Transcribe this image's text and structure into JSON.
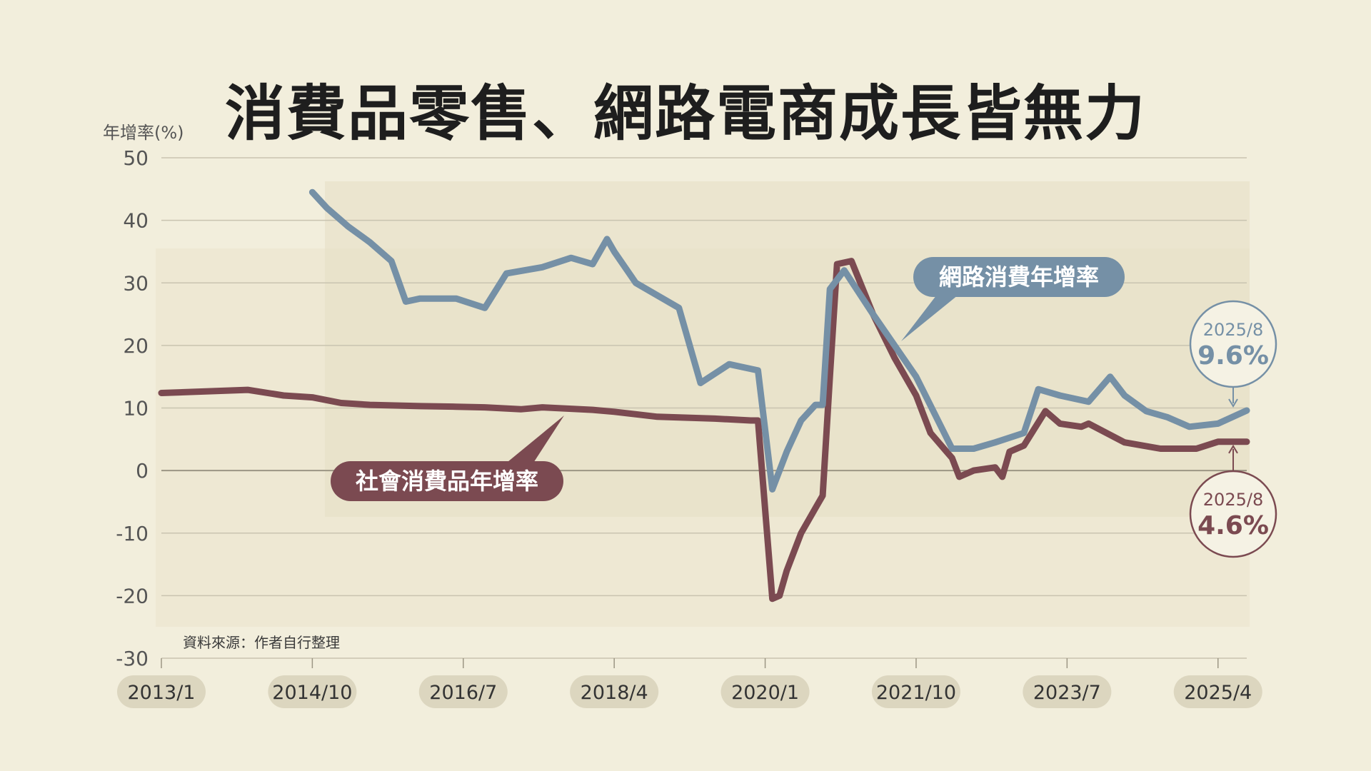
{
  "title": "消費品零售、網路電商成長皆無力",
  "source": "資料來源：作者自行整理",
  "colors": {
    "background": "#f2eedc",
    "retail": "#7b4a51",
    "online": "#7590a6",
    "grid": "#c9c4b0",
    "tick_pill": "#dcd6bf"
  },
  "chart_data": {
    "type": "line",
    "ylabel": "年增率(%)",
    "ylim": [
      -30,
      50
    ],
    "yticks": [
      -30,
      -20,
      -10,
      0,
      10,
      20,
      30,
      40,
      50
    ],
    "xlim": [
      "2013-01",
      "2025-08"
    ],
    "xticks": [
      "2013/1",
      "2014/10",
      "2016/7",
      "2018/4",
      "2020/1",
      "2021/10",
      "2023/7",
      "2025/4"
    ],
    "grid": true,
    "series": [
      {
        "name": "社會消費品年增率",
        "color": "#7b4a51",
        "points": [
          [
            "2013-01",
            12.4
          ],
          [
            "2014-01",
            12.9
          ],
          [
            "2014-06",
            12.0
          ],
          [
            "2014-10",
            11.7
          ],
          [
            "2015-02",
            10.8
          ],
          [
            "2015-06",
            10.5
          ],
          [
            "2016-01",
            10.3
          ],
          [
            "2016-06",
            10.2
          ],
          [
            "2016-10",
            10.1
          ],
          [
            "2017-03",
            9.8
          ],
          [
            "2017-06",
            10.1
          ],
          [
            "2018-01",
            9.7
          ],
          [
            "2018-04",
            9.4
          ],
          [
            "2018-10",
            8.6
          ],
          [
            "2019-06",
            8.3
          ],
          [
            "2019-11",
            8.0
          ],
          [
            "2019-12",
            8.0
          ],
          [
            "2020-02",
            -20.5
          ],
          [
            "2020-03",
            -20.0
          ],
          [
            "2020-04",
            -16.0
          ],
          [
            "2020-06",
            -10.0
          ],
          [
            "2020-08",
            -6.0
          ],
          [
            "2020-09",
            -4.0
          ],
          [
            "2020-10",
            15.0
          ],
          [
            "2020-11",
            33.0
          ],
          [
            "2021-01",
            33.5
          ],
          [
            "2021-04",
            25.0
          ],
          [
            "2021-07",
            18.0
          ],
          [
            "2021-10",
            12.0
          ],
          [
            "2021-11",
            9.0
          ],
          [
            "2021-12",
            6.0
          ],
          [
            "2022-03",
            2.0
          ],
          [
            "2022-04",
            -1.0
          ],
          [
            "2022-06",
            0.0
          ],
          [
            "2022-09",
            0.5
          ],
          [
            "2022-10",
            -1.0
          ],
          [
            "2022-11",
            3.0
          ],
          [
            "2023-01",
            4.0
          ],
          [
            "2023-04",
            9.5
          ],
          [
            "2023-06",
            7.5
          ],
          [
            "2023-09",
            7.0
          ],
          [
            "2023-10",
            7.5
          ],
          [
            "2024-03",
            4.5
          ],
          [
            "2024-08",
            3.5
          ],
          [
            "2025-01",
            3.5
          ],
          [
            "2025-04",
            4.6
          ],
          [
            "2025-08",
            4.6
          ]
        ]
      },
      {
        "name": "網路消費年增率",
        "color": "#7590a6",
        "points": [
          [
            "2014-10",
            44.5
          ],
          [
            "2014-12",
            42.0
          ],
          [
            "2015-03",
            39.0
          ],
          [
            "2015-06",
            36.5
          ],
          [
            "2015-09",
            33.5
          ],
          [
            "2015-11",
            27.0
          ],
          [
            "2016-01",
            27.5
          ],
          [
            "2016-06",
            27.5
          ],
          [
            "2016-10",
            26.0
          ],
          [
            "2017-01",
            31.5
          ],
          [
            "2017-06",
            32.5
          ],
          [
            "2017-10",
            34.0
          ],
          [
            "2018-01",
            33.0
          ],
          [
            "2018-03",
            37.0
          ],
          [
            "2018-04",
            35.0
          ],
          [
            "2018-07",
            30.0
          ],
          [
            "2019-01",
            26.0
          ],
          [
            "2019-04",
            14.0
          ],
          [
            "2019-08",
            17.0
          ],
          [
            "2019-12",
            16.0
          ],
          [
            "2020-02",
            -3.0
          ],
          [
            "2020-04",
            3.0
          ],
          [
            "2020-06",
            8.0
          ],
          [
            "2020-08",
            10.5
          ],
          [
            "2020-09",
            10.5
          ],
          [
            "2020-10",
            29.0
          ],
          [
            "2020-12",
            32.0
          ],
          [
            "2021-04",
            25.0
          ],
          [
            "2021-10",
            15.0
          ],
          [
            "2022-03",
            3.5
          ],
          [
            "2022-06",
            3.5
          ],
          [
            "2022-09",
            4.5
          ],
          [
            "2023-01",
            6.0
          ],
          [
            "2023-03",
            13.0
          ],
          [
            "2023-06",
            12.0
          ],
          [
            "2023-10",
            11.0
          ],
          [
            "2024-01",
            15.0
          ],
          [
            "2024-03",
            12.0
          ],
          [
            "2024-06",
            9.5
          ],
          [
            "2024-09",
            8.5
          ],
          [
            "2024-12",
            7.0
          ],
          [
            "2025-04",
            7.5
          ],
          [
            "2025-08",
            9.6
          ]
        ]
      }
    ],
    "annotations": [
      {
        "label": "2025/8",
        "value": "9.6%",
        "series": "網路消費年增率"
      },
      {
        "label": "2025/8",
        "value": "4.6%",
        "series": "社會消費品年增率"
      }
    ]
  }
}
